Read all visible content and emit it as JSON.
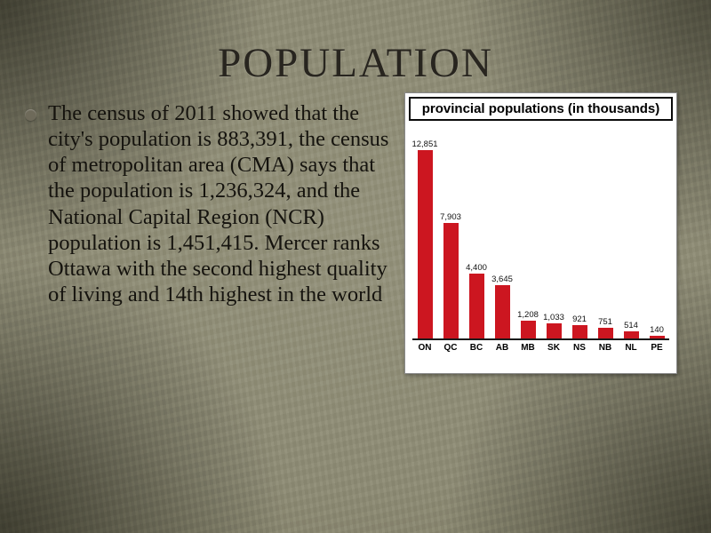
{
  "slide": {
    "title": "POPULATION",
    "bullet_text": "The census of 2011 showed that the city's population is 883,391, the census of metropolitan area (CMA) says that the population is 1,236,324, and the National Capital Region (NCR) population is 1,451,415. Mercer ranks Ottawa with the second highest quality of living and 14th highest in the world"
  },
  "chart_data": {
    "type": "bar",
    "title": "provincial populations (in thousands)",
    "categories": [
      "ON",
      "QC",
      "BC",
      "AB",
      "MB",
      "SK",
      "NS",
      "NB",
      "NL",
      "PE"
    ],
    "values": [
      12851,
      7903,
      4400,
      3645,
      1208,
      1033,
      921,
      751,
      514,
      140
    ],
    "value_labels": [
      "12,851",
      "7,903",
      "4,400",
      "3,645",
      "1,208",
      "1,033",
      "921",
      "751",
      "514",
      "140"
    ],
    "bar_color": "#cc1620",
    "xlabel": "",
    "ylabel": "",
    "ylim": [
      0,
      13000
    ],
    "grid": false,
    "legend": false
  }
}
